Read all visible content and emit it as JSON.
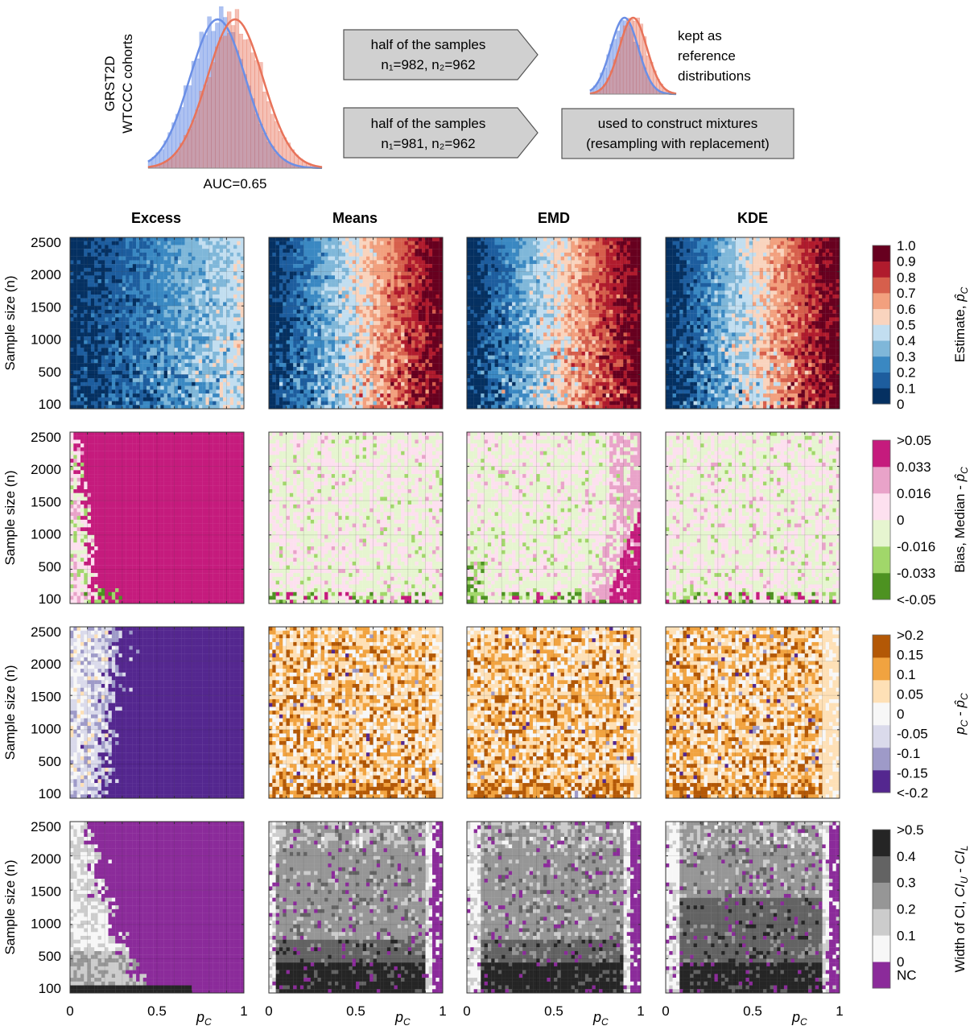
{
  "schematic": {
    "cohort_label_line1": "GRST2D",
    "cohort_label_line2": "WTCCC cohorts",
    "auc_label": "AUC=0.65",
    "arrow_top_line1": "half of the samples",
    "arrow_top_line2": "n₁=982, n₂=962",
    "arrow_bottom_line1": "half of the samples",
    "arrow_bottom_line2": "n₁=981, n₂=962",
    "reference_line1": "kept as",
    "reference_line2": "reference",
    "reference_line3": "distributions",
    "mixture_line1": "used to construct mixtures",
    "mixture_line2": "(resampling with replacement)",
    "colors": {
      "dist1": "#6b8fe6",
      "dist2": "#e8735a",
      "box_fill": "#d0d0d0",
      "box_stroke": "#555555"
    }
  },
  "chart_data": {
    "type": "heatmap",
    "methods": [
      "Excess",
      "Means",
      "EMD",
      "KDE"
    ],
    "x": {
      "label": "p_C",
      "ticks": [
        "0",
        "0.5",
        "1"
      ],
      "range": [
        0,
        1
      ]
    },
    "y": {
      "label": "Sample size (n)",
      "ticks": [
        "2500",
        "2000",
        "1500",
        "1000",
        "500",
        "100"
      ],
      "range": [
        100,
        2500
      ]
    },
    "grid": true,
    "rows": [
      {
        "id": "estimate",
        "colorbar_title": "Estimate, p̂_C",
        "colorbar_labels": [
          "1.0",
          "0.9",
          "0.8",
          "0.7",
          "0.6",
          "0.5",
          "0.4",
          "0.3",
          "0.2",
          "0.1",
          "0"
        ],
        "colors": [
          "#053061",
          "#1d5d9e",
          "#3a88c2",
          "#7fb7d9",
          "#c2def0",
          "#f9d4be",
          "#f2a07e",
          "#d65f4c",
          "#b01b2d",
          "#67001f"
        ]
      },
      {
        "id": "bias",
        "colorbar_title": "Bias, Median - p̂_C",
        "colorbar_labels": [
          ">0.05",
          "0.033",
          "0.016",
          "0",
          "-0.016",
          "-0.033",
          "<-0.05"
        ],
        "colors": [
          "#4d9221",
          "#a1d76a",
          "#e6f5d0",
          "#fde0ef",
          "#e9a3c9",
          "#c51b7d"
        ]
      },
      {
        "id": "error",
        "colorbar_title": "p_C - p̂_C",
        "colorbar_labels": [
          ">0.2",
          "0.15",
          "0.1",
          "0.05",
          "0",
          "-0.05",
          "-0.1",
          "-0.15",
          "<-0.2"
        ],
        "colors": [
          "#54278f",
          "#9e9ac8",
          "#dadaeb",
          "#f7f7f7",
          "#fee0b6",
          "#f1a340",
          "#b35806"
        ]
      },
      {
        "id": "ci_width",
        "colorbar_title": "Width of CI, CI_U - CI_L",
        "colorbar_labels": [
          ">0.5",
          "0.4",
          "0.3",
          "0.2",
          "0.1",
          "0",
          "NC"
        ],
        "colors": [
          "#8b2b9a",
          "#f7f7f7",
          "#cccccc",
          "#969696",
          "#636363",
          "#252525"
        ]
      }
    ]
  }
}
